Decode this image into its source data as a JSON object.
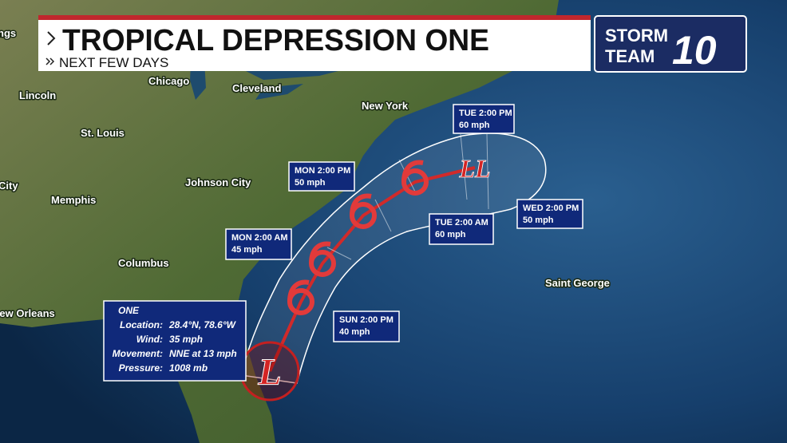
{
  "header": {
    "title": "TROPICAL DEPRESSION ONE",
    "subtitle": "NEXT FEW DAYS"
  },
  "logo": {
    "line1": "STORM",
    "line2": "TEAM",
    "number": "10"
  },
  "cities": [
    "ngs",
    "Chicago",
    "Cleveland",
    "Lincoln",
    "New York",
    "St. Louis",
    "Johnson City",
    "City",
    "Memphis",
    "Columbus",
    "New Orleans",
    "Saint George"
  ],
  "forecast_points": [
    {
      "time": "TUE 2:00 PM",
      "wind": "60 mph"
    },
    {
      "time": "MON 2:00 PM",
      "wind": "50 mph"
    },
    {
      "time": "WED 2:00 PM",
      "wind": "50 mph"
    },
    {
      "time": "TUE 2:00 AM",
      "wind": "60 mph"
    },
    {
      "time": "MON 2:00 AM",
      "wind": "45 mph"
    },
    {
      "time": "SUN 2:00 PM",
      "wind": "40 mph"
    }
  ],
  "storm_info": {
    "name": "ONE",
    "rows": [
      {
        "label": "Location:",
        "value": "28.4°N, 78.6°W"
      },
      {
        "label": "Wind:",
        "value": "35 mph"
      },
      {
        "label": "Movement:",
        "value": "NNE at 13 mph"
      },
      {
        "label": "Pressure:",
        "value": "1008 mb"
      }
    ]
  },
  "symbols": {
    "current": "L",
    "end": "LL"
  }
}
